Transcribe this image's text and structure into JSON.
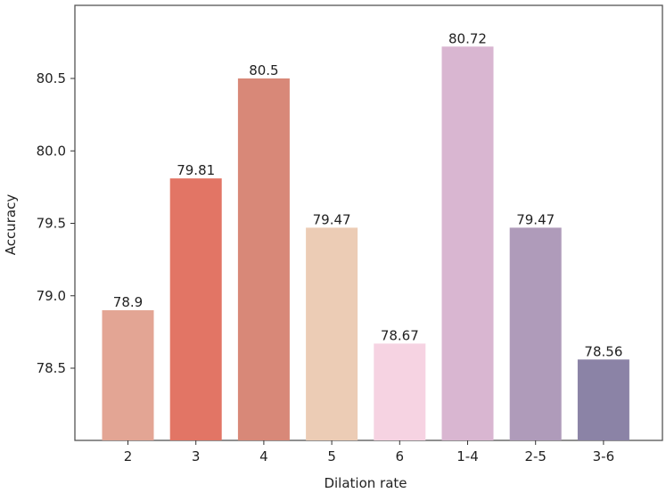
{
  "chart_data": {
    "type": "bar",
    "title": "",
    "xlabel": "Dilation rate",
    "ylabel": "Accuracy",
    "categories": [
      "2",
      "3",
      "4",
      "5",
      "6",
      "1-4",
      "2-5",
      "3-6"
    ],
    "values": [
      78.9,
      79.81,
      80.5,
      79.47,
      78.67,
      80.72,
      79.47,
      78.56
    ],
    "value_labels": [
      "78.9",
      "79.81",
      "80.5",
      "79.47",
      "78.67",
      "80.72",
      "79.47",
      "78.56"
    ],
    "bar_colors": [
      "#e3a594",
      "#e27565",
      "#d88878",
      "#ecccb5",
      "#f6d3e2",
      "#d9b6d1",
      "#af9bba",
      "#8b83a6"
    ],
    "ylim": [
      78.0,
      81.0
    ],
    "yticks": [
      78.5,
      79.0,
      79.5,
      80.0,
      80.5
    ],
    "ytick_labels": [
      "78.5",
      "79.0",
      "79.5",
      "80.0",
      "80.5"
    ],
    "grid": false,
    "legend": "none"
  }
}
